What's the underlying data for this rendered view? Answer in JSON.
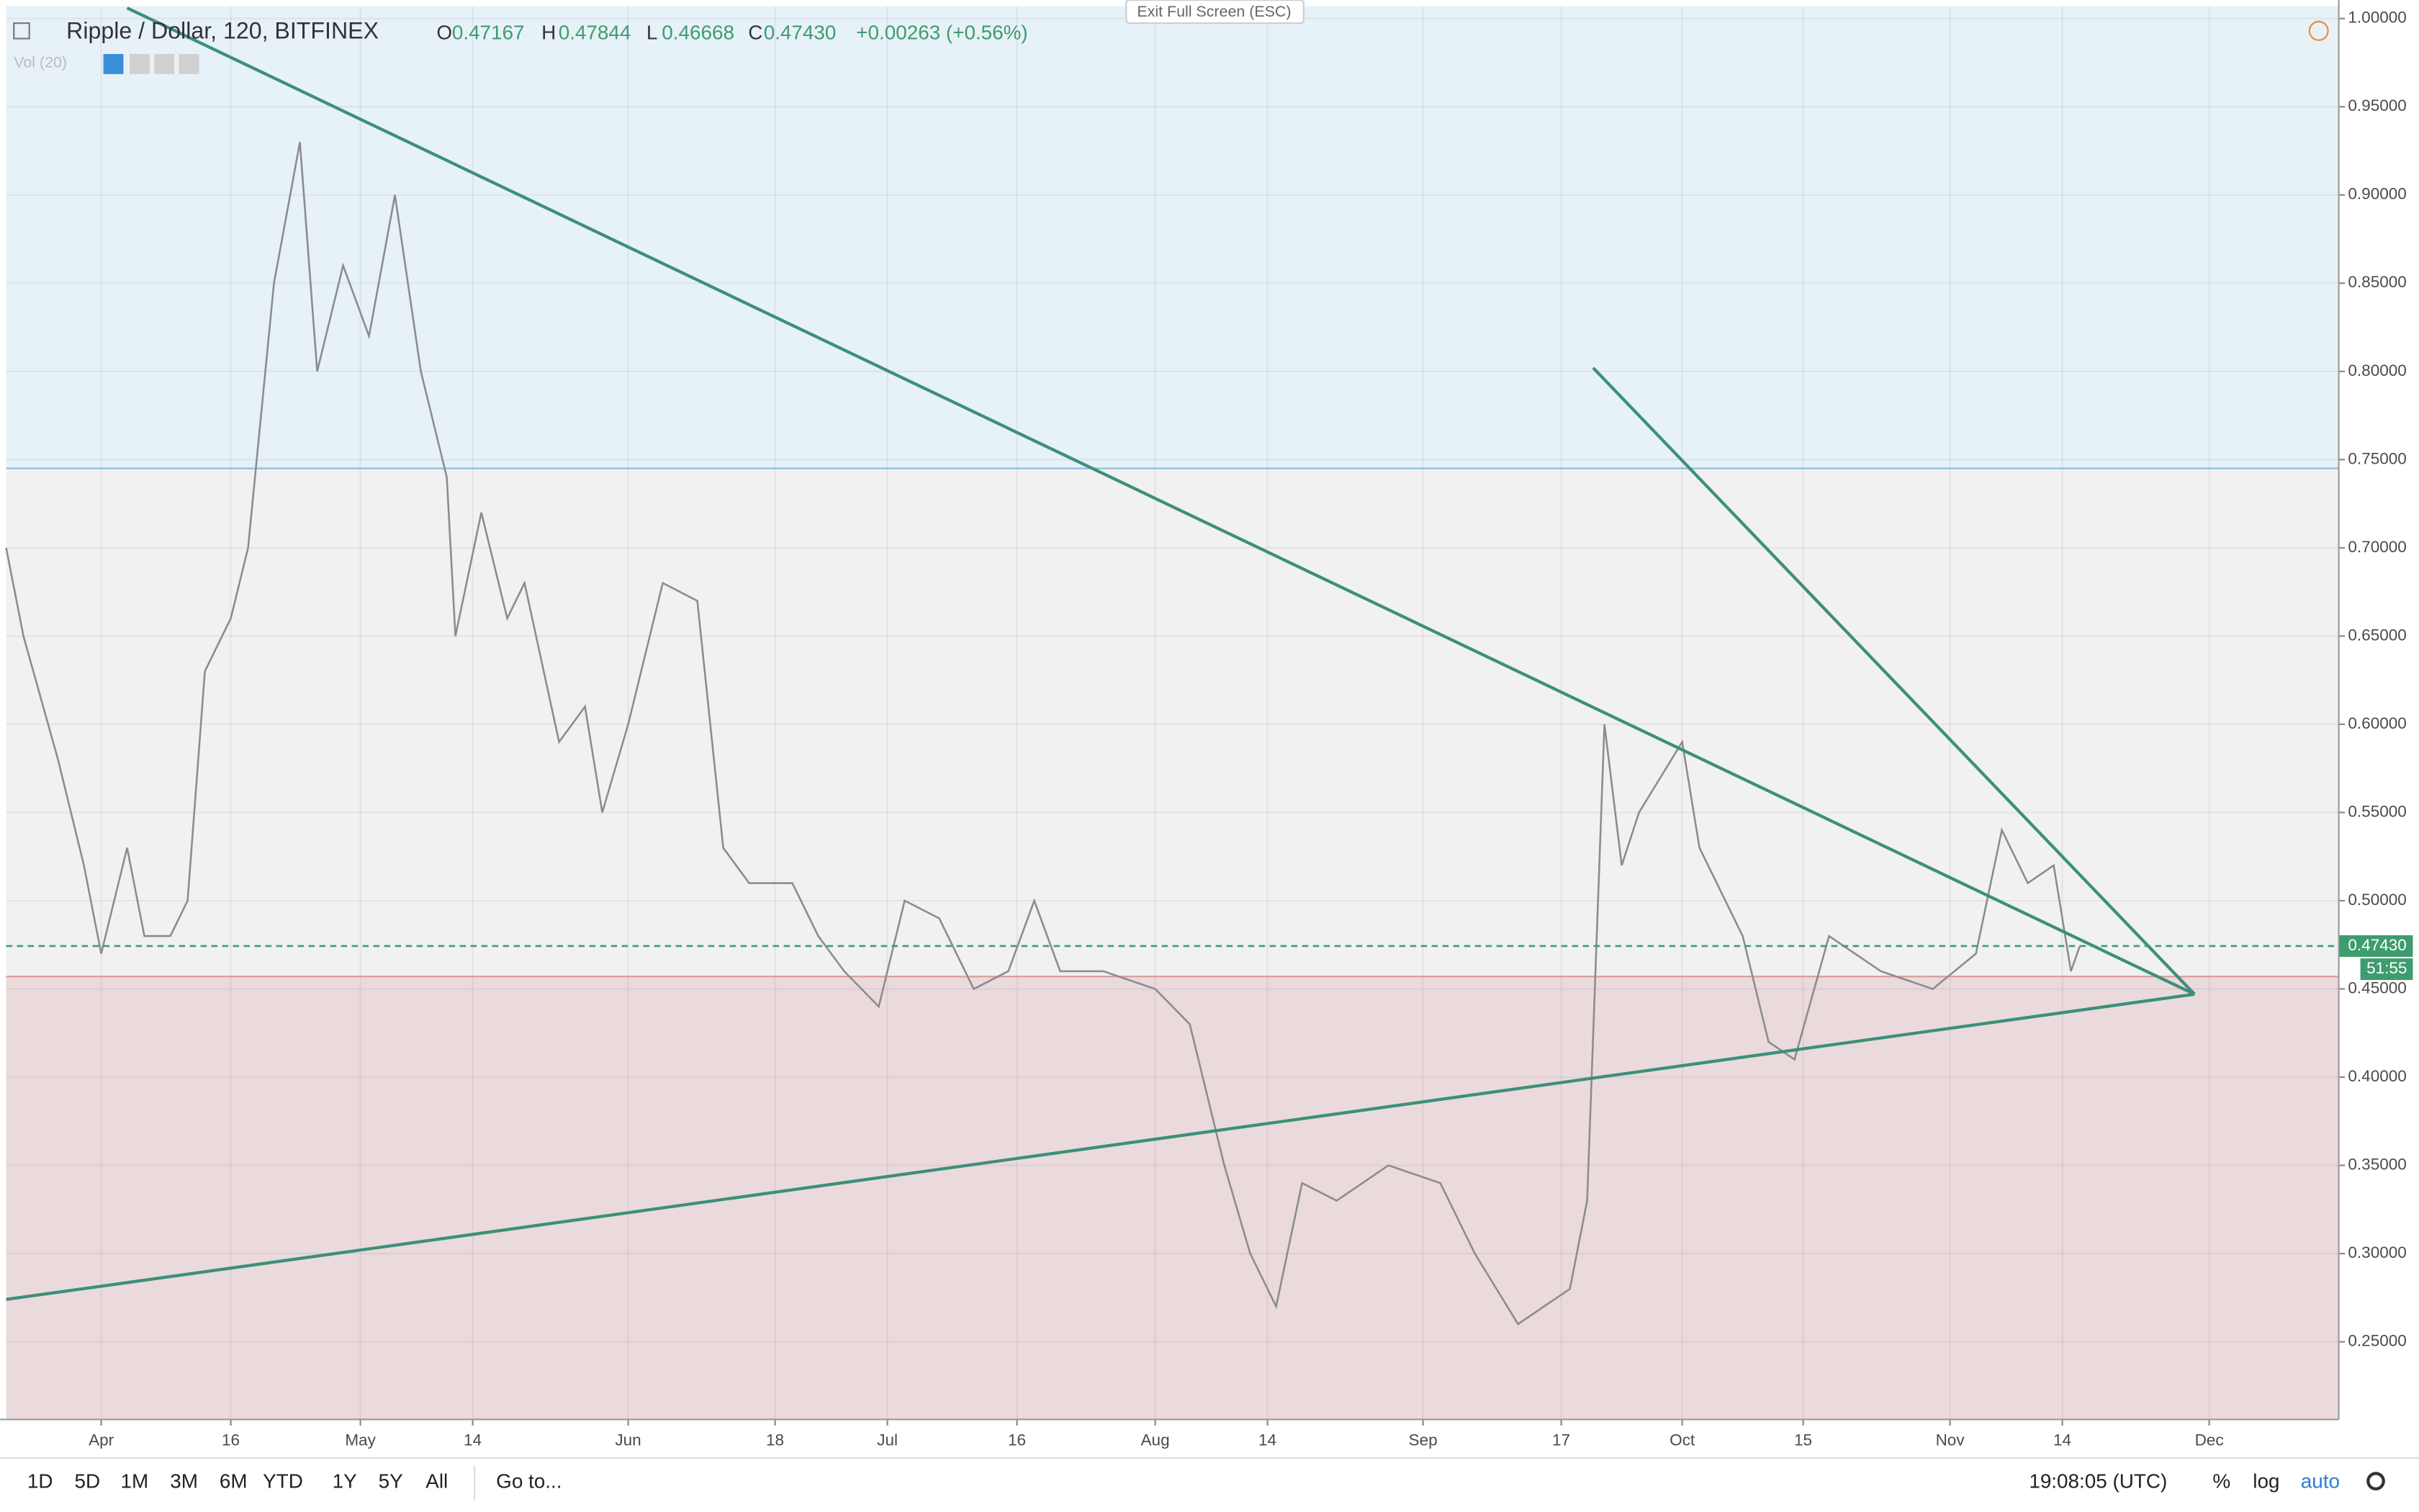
{
  "chart_data": {
    "type": "line",
    "header": {
      "symbol": "Ripple / Dollar, 120, BITFINEX",
      "o_label": "O",
      "open": "0.47167",
      "h_label": "H",
      "high": "0.47844",
      "l_label": "L",
      "low": "0.46668",
      "c_label": "C",
      "close": "0.47430",
      "change": "+0.00263 (+0.56%)",
      "volume": "Vol (20)"
    },
    "exit_fullscreen": "Exit Full Screen (ESC)",
    "xlim": [
      80,
      350
    ],
    "xticks": [
      {
        "value": 91,
        "label": "Apr"
      },
      {
        "value": 106,
        "label": "16"
      },
      {
        "value": 121,
        "label": "May"
      },
      {
        "value": 134,
        "label": "14"
      },
      {
        "value": 152,
        "label": "Jun"
      },
      {
        "value": 169,
        "label": "18"
      },
      {
        "value": 182,
        "label": "Jul"
      },
      {
        "value": 197,
        "label": "16"
      },
      {
        "value": 213,
        "label": "Aug"
      },
      {
        "value": 226,
        "label": "14"
      },
      {
        "value": 244,
        "label": "Sep"
      },
      {
        "value": 260,
        "label": "17"
      },
      {
        "value": 274,
        "label": "Oct"
      },
      {
        "value": 288,
        "label": "15"
      },
      {
        "value": 305,
        "label": "Nov"
      },
      {
        "value": 318,
        "label": "14"
      },
      {
        "value": 335,
        "label": "Dec"
      }
    ],
    "ylim": [
      0.206,
      1.007
    ],
    "yticks": [
      {
        "value": 0.25,
        "label": "0.25000"
      },
      {
        "value": 0.3,
        "label": "0.30000"
      },
      {
        "value": 0.35,
        "label": "0.35000"
      },
      {
        "value": 0.4,
        "label": "0.40000"
      },
      {
        "value": 0.45,
        "label": "0.45000"
      },
      {
        "value": 0.5,
        "label": "0.50000"
      },
      {
        "value": 0.55,
        "label": "0.55000"
      },
      {
        "value": 0.6,
        "label": "0.60000"
      },
      {
        "value": 0.65,
        "label": "0.65000"
      },
      {
        "value": 0.7,
        "label": "0.70000"
      },
      {
        "value": 0.75,
        "label": "0.75000"
      },
      {
        "value": 0.8,
        "label": "0.80000"
      },
      {
        "value": 0.85,
        "label": "0.85000"
      },
      {
        "value": 0.9,
        "label": "0.90000"
      },
      {
        "value": 0.95,
        "label": "0.95000"
      },
      {
        "value": 1.0,
        "label": "1.00000"
      }
    ],
    "grid": true,
    "series": [
      {
        "color": "#8c8c8c",
        "x": [
          80,
          82,
          86,
          89,
          91,
          94,
          96,
          99,
          101,
          103,
          106,
          108,
          111,
          114,
          116,
          119,
          122,
          125,
          128,
          131,
          132,
          135,
          138,
          140,
          144,
          147,
          149,
          152,
          156,
          160,
          163,
          166,
          171,
          174,
          177,
          181,
          184,
          188,
          192,
          196,
          199,
          202,
          207,
          213,
          217,
          221,
          224,
          227,
          230,
          234,
          240,
          246,
          250,
          255,
          261,
          263,
          265,
          267,
          269,
          274,
          276,
          281,
          284,
          287,
          291,
          297,
          303,
          308,
          311,
          314,
          317,
          319,
          320
        ],
        "values": [
          0.7,
          0.65,
          0.58,
          0.52,
          0.47,
          0.53,
          0.48,
          0.48,
          0.5,
          0.63,
          0.66,
          0.7,
          0.85,
          0.93,
          0.8,
          0.86,
          0.82,
          0.9,
          0.8,
          0.74,
          0.65,
          0.72,
          0.66,
          0.68,
          0.59,
          0.61,
          0.55,
          0.6,
          0.68,
          0.67,
          0.53,
          0.51,
          0.51,
          0.48,
          0.46,
          0.44,
          0.5,
          0.49,
          0.45,
          0.46,
          0.5,
          0.46,
          0.46,
          0.45,
          0.43,
          0.35,
          0.3,
          0.27,
          0.34,
          0.33,
          0.35,
          0.34,
          0.3,
          0.26,
          0.28,
          0.33,
          0.6,
          0.52,
          0.55,
          0.59,
          0.53,
          0.48,
          0.42,
          0.41,
          0.48,
          0.46,
          0.45,
          0.47,
          0.54,
          0.51,
          0.52,
          0.46,
          0.474
        ]
      }
    ],
    "trend_lines": [
      {
        "color": "#3d8f7a",
        "x": [
          94,
          333.3
        ],
        "y": [
          1.006,
          0.447
        ]
      },
      {
        "color": "#3d8f7a",
        "x": [
          263.7,
          333.3
        ],
        "y": [
          0.802,
          0.447
        ]
      },
      {
        "color": "#3d8f7a",
        "x": [
          80,
          333.3
        ],
        "y": [
          0.274,
          0.447
        ]
      }
    ],
    "zone_lines": [
      {
        "value": 0.745,
        "color": "#8bb8d8",
        "fill": "#e7f1f8"
      },
      {
        "value": 0.457,
        "color": "#d89a98",
        "fill": "#eadadb"
      }
    ],
    "middle_fill": "#f1f1f1",
    "last_price": {
      "value": 0.4743,
      "label": "0.47430",
      "color": "#3e9c6e"
    },
    "countdown": "51:55"
  },
  "toolbar": {
    "ranges": [
      "1D",
      "5D",
      "1M",
      "3M",
      "6M",
      "YTD",
      "1Y",
      "5Y",
      "All"
    ],
    "goto": "Go to...",
    "clock": "19:08:05 (UTC)",
    "percent": "%",
    "log": "log",
    "auto": "auto"
  }
}
